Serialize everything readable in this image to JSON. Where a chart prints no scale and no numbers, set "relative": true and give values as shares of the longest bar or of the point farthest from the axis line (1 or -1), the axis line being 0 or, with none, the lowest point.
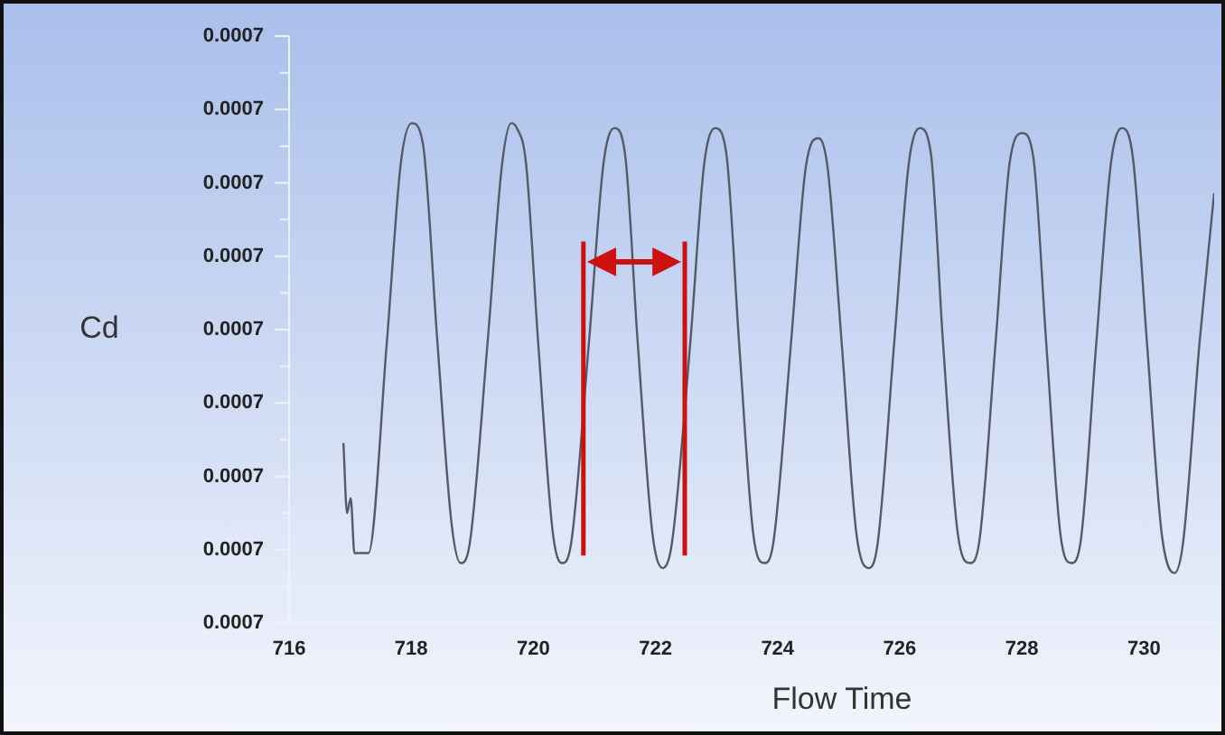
{
  "chart_data": {
    "type": "line",
    "relative": true,
    "xlabel": "Flow Time",
    "ylabel": "Cd",
    "color": "#555a66",
    "marker": "none",
    "grid": false,
    "legend": false,
    "xlim": [
      716,
      731.15
    ],
    "xticks": [
      716,
      718,
      720,
      722,
      724,
      726,
      728,
      730
    ],
    "annotations": [
      "0.0007",
      "0.0007",
      "0.0007",
      "0.0007",
      "0.0007",
      "0.0007",
      "0.0007",
      "0.0007",
      "0.0007"
    ],
    "x": [
      716.89,
      716.95,
      717.01,
      717.07,
      717.18,
      717.3,
      717.6,
      717.83,
      718.01,
      718.19,
      718.43,
      718.66,
      718.81,
      718.96,
      719.25,
      719.49,
      719.64,
      719.73,
      719.88,
      720.08,
      720.32,
      720.47,
      720.62,
      720.91,
      721.15,
      721.33,
      721.5,
      721.71,
      721.95,
      722.12,
      722.27,
      722.57,
      722.8,
      722.98,
      723.16,
      723.37,
      723.6,
      723.78,
      723.93,
      724.22,
      724.46,
      724.67,
      724.82,
      725.05,
      725.29,
      725.5,
      725.64,
      725.91,
      726.15,
      726.33,
      726.51,
      726.71,
      726.95,
      727.15,
      727.3,
      727.57,
      727.8,
      728.01,
      728.19,
      728.4,
      728.63,
      728.81,
      728.96,
      729.22,
      729.46,
      729.64,
      729.82,
      730.05,
      730.29,
      730.5,
      730.64,
      730.91,
      731.15
    ],
    "values": [
      0.36,
      0.22,
      0.25,
      0.14,
      0.14,
      0.14,
      0.56,
      0.92,
      1.0,
      0.96,
      0.56,
      0.2,
      0.12,
      0.16,
      0.56,
      0.92,
      1.0,
      0.99,
      0.92,
      0.56,
      0.18,
      0.12,
      0.16,
      0.56,
      0.92,
      0.99,
      0.94,
      0.56,
      0.18,
      0.11,
      0.16,
      0.56,
      0.92,
      0.99,
      0.94,
      0.56,
      0.18,
      0.12,
      0.16,
      0.56,
      0.91,
      0.97,
      0.91,
      0.56,
      0.18,
      0.11,
      0.16,
      0.56,
      0.92,
      0.99,
      0.94,
      0.56,
      0.18,
      0.12,
      0.16,
      0.56,
      0.92,
      0.98,
      0.93,
      0.56,
      0.18,
      0.12,
      0.16,
      0.56,
      0.92,
      0.99,
      0.93,
      0.56,
      0.18,
      0.1,
      0.16,
      0.56,
      0.86
    ],
    "ref_lines": [
      {
        "axis": "x",
        "value": 720.82,
        "color": "#cc1111"
      },
      {
        "axis": "x",
        "value": 722.48,
        "color": "#cc1111"
      }
    ]
  }
}
